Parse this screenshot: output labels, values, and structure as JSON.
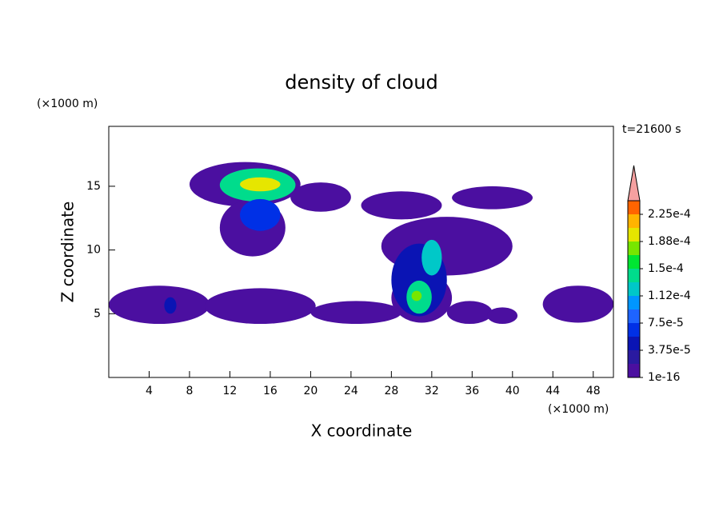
{
  "chart_data": {
    "type": "contour",
    "title": "density of cloud",
    "xlabel": "X coordinate",
    "ylabel": "Z coordinate",
    "xunit": "(×1000 m)",
    "yunit": "(×1000 m)",
    "time_label": "t=21600 s",
    "xlim": [
      0,
      50
    ],
    "ylim": [
      0,
      19.7
    ],
    "xticks": [
      4,
      8,
      12,
      16,
      20,
      24,
      28,
      32,
      36,
      40,
      44,
      48
    ],
    "yticks": [
      5,
      10,
      15
    ],
    "colorbar": {
      "levels": [
        1e-16,
        1.875e-05,
        3.75e-05,
        5.625e-05,
        7.5e-05,
        9.375e-05,
        0.0001125,
        0.00013125,
        0.00015,
        0.00016875,
        0.0001875,
        0.00020625,
        0.000225,
        0.00024375
      ],
      "colors": [
        "#4b0fa0",
        "#2a1aa0",
        "#0a14b4",
        "#0030e6",
        "#1e64ff",
        "#0096ff",
        "#00c8c8",
        "#00dc8c",
        "#00e632",
        "#78e600",
        "#e6e600",
        "#ffb400",
        "#ff6400",
        "#e61e1e",
        "#f5a0a0"
      ],
      "ticks": [
        {
          "value": 1e-16,
          "label": "1e-16"
        },
        {
          "value": 3.75e-05,
          "label": "3.75e-5"
        },
        {
          "value": 7.5e-05,
          "label": "7.5e-5"
        },
        {
          "value": 0.0001125,
          "label": "1.12e-4"
        },
        {
          "value": 0.00015,
          "label": "1.5e-4"
        },
        {
          "value": 0.0001875,
          "label": "1.88e-4"
        },
        {
          "value": 0.000225,
          "label": "2.25e-4"
        }
      ]
    },
    "regions": [
      {
        "x": [
          0,
          10
        ],
        "z": [
          4.2,
          7.2
        ],
        "value": 1e-05
      },
      {
        "x": [
          9.5,
          20.5
        ],
        "z": [
          4.2,
          7
        ],
        "value": 1e-05
      },
      {
        "x": [
          20,
          29
        ],
        "z": [
          4.2,
          6
        ],
        "value": 1e-05
      },
      {
        "x": [
          33.5,
          38
        ],
        "z": [
          4.2,
          6
        ],
        "value": 1e-05
      },
      {
        "x": [
          37.5,
          40.5
        ],
        "z": [
          4.2,
          5.5
        ],
        "value": 1e-05
      },
      {
        "x": [
          43,
          50
        ],
        "z": [
          4.3,
          7.2
        ],
        "value": 1e-05
      },
      {
        "x": [
          8,
          19
        ],
        "z": [
          13.4,
          16.9
        ],
        "value": 1e-05
      },
      {
        "x": [
          18,
          24
        ],
        "z": [
          13,
          15.3
        ],
        "value": 1e-05
      },
      {
        "x": [
          11,
          17.5
        ],
        "z": [
          9.5,
          14
        ],
        "value": 1e-05
      },
      {
        "x": [
          27,
          40
        ],
        "z": [
          8,
          12.6
        ],
        "value": 1e-05
      },
      {
        "x": [
          28,
          34
        ],
        "z": [
          4.3,
          8.2
        ],
        "value": 1e-05
      },
      {
        "x": [
          34,
          42
        ],
        "z": [
          13.2,
          15
        ],
        "value": 1e-05
      },
      {
        "x": [
          25,
          33
        ],
        "z": [
          12.4,
          14.6
        ],
        "value": 1e-05
      },
      {
        "x": [
          11,
          18.5
        ],
        "z": [
          13.8,
          16.4
        ],
        "value": 0.00014
      },
      {
        "x": [
          13,
          17
        ],
        "z": [
          14.6,
          15.7
        ],
        "value": 0.0002
      },
      {
        "x": [
          13,
          17
        ],
        "z": [
          11.5,
          14
        ],
        "value": 7e-05
      },
      {
        "x": [
          28,
          33.5
        ],
        "z": [
          4.8,
          10.5
        ],
        "value": 5e-05
      },
      {
        "x": [
          31,
          33
        ],
        "z": [
          8,
          10.8
        ],
        "value": 0.00012
      },
      {
        "x": [
          29.5,
          32
        ],
        "z": [
          5,
          7.6
        ],
        "value": 0.00014
      },
      {
        "x": [
          30,
          31
        ],
        "z": [
          6,
          6.8
        ],
        "value": 0.00017
      },
      {
        "x": [
          5.5,
          6.7
        ],
        "z": [
          5,
          6.3
        ],
        "value": 5e-05
      }
    ]
  }
}
